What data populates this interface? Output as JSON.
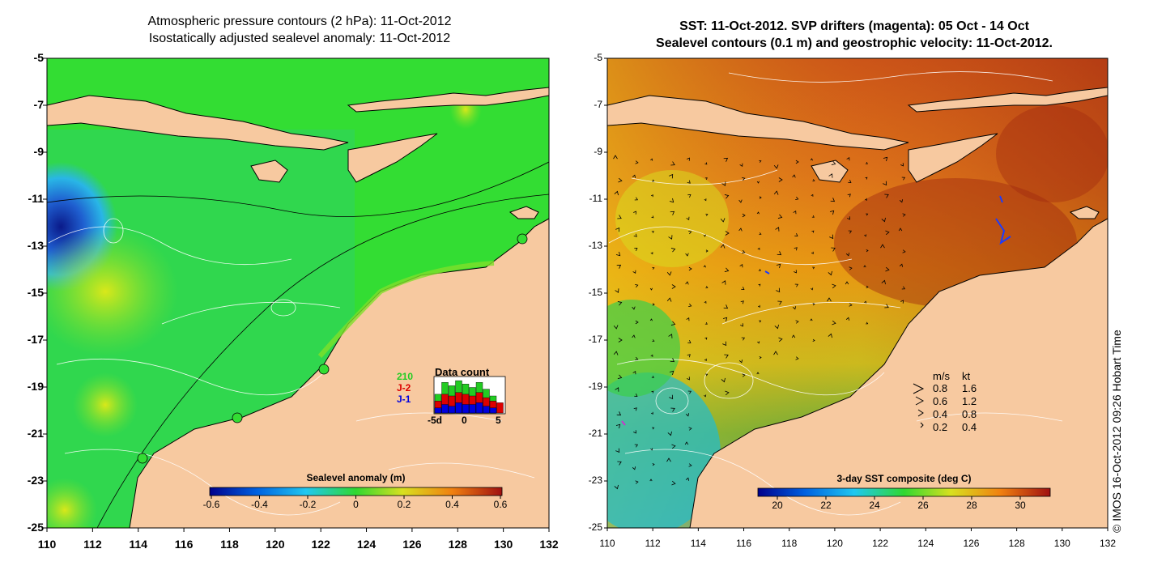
{
  "left_panel": {
    "title_line1": "Atmospheric pressure contours (2 hPa): 11-Oct-2012",
    "title_line2": "Isostatically adjusted sealevel anomaly: 11-Oct-2012",
    "y_ticks": [
      "-5",
      "-7",
      "-9",
      "-11",
      "-13",
      "-15",
      "-17",
      "-19",
      "-21",
      "-23",
      "-25"
    ],
    "x_ticks": [
      "110",
      "112",
      "114",
      "116",
      "118",
      "120",
      "122",
      "124",
      "126",
      "128",
      "130",
      "132"
    ],
    "colorbar_title": "Sealevel anomaly (m)",
    "colorbar_ticks": [
      "-0.6",
      "-0.4",
      "-0.2",
      "0",
      "0.2",
      "0.4",
      "0.6"
    ],
    "inset": {
      "title": "Data count",
      "labels": [
        {
          "text": "210",
          "color": "#22cc22"
        },
        {
          "text": "J-2",
          "color": "#dd0000"
        },
        {
          "text": "J-1",
          "color": "#0000dd"
        }
      ],
      "x_ticks": [
        "-5d",
        "0",
        "5"
      ],
      "bars": [
        {
          "green": 0.55,
          "red": 0.35,
          "blue": 0.15
        },
        {
          "green": 0.9,
          "red": 0.55,
          "blue": 0.25
        },
        {
          "green": 0.8,
          "red": 0.5,
          "blue": 0.2
        },
        {
          "green": 0.95,
          "red": 0.6,
          "blue": 0.3
        },
        {
          "green": 0.85,
          "red": 0.55,
          "blue": 0.25
        },
        {
          "green": 0.75,
          "red": 0.5,
          "blue": 0.25
        },
        {
          "green": 0.9,
          "red": 0.6,
          "blue": 0.3
        },
        {
          "green": 0.7,
          "red": 0.45,
          "blue": 0.2
        },
        {
          "green": 0.5,
          "red": 0.35,
          "blue": 0.15
        },
        {
          "green": 0,
          "red": 0.3,
          "blue": 0
        }
      ]
    },
    "colors": {
      "land": "#f7c9a0",
      "ocean": "#33dd33"
    }
  },
  "right_panel": {
    "title_line1": "SST: 11-Oct-2012. SVP drifters (magenta): 05 Oct - 14 Oct",
    "title_line2": "Sealevel contours (0.1 m) and geostrophic velocity: 11-Oct-2012.",
    "y_ticks": [
      "-5",
      "-7",
      "-9",
      "-11",
      "-13",
      "-15",
      "-17",
      "-19",
      "-21",
      "-23",
      "-25"
    ],
    "x_ticks": [
      "110",
      "112",
      "114",
      "116",
      "118",
      "120",
      "122",
      "124",
      "126",
      "128",
      "130",
      "132"
    ],
    "colorbar_title": "3-day SST composite (deg C)",
    "colorbar_ticks": [
      "20",
      "22",
      "24",
      "26",
      "28",
      "30"
    ],
    "velocity_legend": {
      "header_ms": "m/s",
      "header_kt": "kt",
      "rows": [
        {
          "ms": "0.8",
          "kt": "1.6"
        },
        {
          "ms": "0.6",
          "kt": "1.2"
        },
        {
          "ms": "0.4",
          "kt": "0.8"
        },
        {
          "ms": "0.2",
          "kt": "0.4"
        }
      ]
    },
    "colors": {
      "land": "#f7c9a0",
      "warm": "#d45a1a"
    }
  },
  "credit": "© IMOS 16-Oct-2012 09:26 Hobart Time"
}
